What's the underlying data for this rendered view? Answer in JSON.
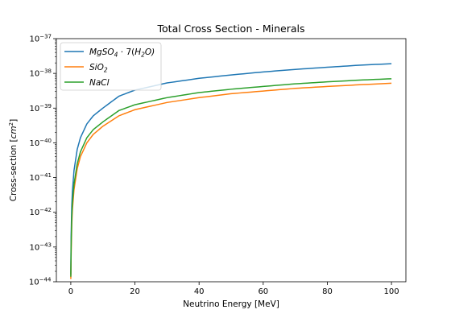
{
  "chart_data": {
    "type": "line",
    "title": "Total Cross Section - Minerals",
    "xlabel": "Neutrino Energy [MeV]",
    "ylabel": "Cross-section [",
    "ylabel_unit_base": "cm",
    "ylabel_unit_exp": "2",
    "ylabel_close": "]",
    "xlim": [
      -4.5,
      104.5
    ],
    "ylim": [
      1e-44,
      1e-37
    ],
    "yscale": "log",
    "grid": false,
    "legend_position": "top-left",
    "x_ticks": [
      0,
      20,
      40,
      60,
      80,
      100
    ],
    "x_tick_labels": [
      "0",
      "20",
      "40",
      "60",
      "80",
      "100"
    ],
    "y_ticks": [
      {
        "exp": -44,
        "base": "10",
        "sup": "−44"
      },
      {
        "exp": -43,
        "base": "10",
        "sup": "−43"
      },
      {
        "exp": -42,
        "base": "10",
        "sup": "−42"
      },
      {
        "exp": -41,
        "base": "10",
        "sup": "−41"
      },
      {
        "exp": -40,
        "base": "10",
        "sup": "−40"
      },
      {
        "exp": -39,
        "base": "10",
        "sup": "−39"
      },
      {
        "exp": -38,
        "base": "10",
        "sup": "−38"
      },
      {
        "exp": -37,
        "base": "10",
        "sup": "−37"
      }
    ],
    "series": [
      {
        "name": "MgSO4·7(H2O)",
        "legend_label": {
          "a": "MgSO",
          "a_sub": "4",
          "b": " · 7(",
          "c": "H",
          "c_sub": "2",
          "d": "O)"
        },
        "color": "#1f77b4",
        "x": [
          0,
          0.1,
          0.3,
          0.5,
          1,
          2,
          3,
          5,
          7,
          10,
          15,
          20,
          30,
          40,
          50,
          60,
          70,
          80,
          90,
          100
        ],
        "y": [
          1.6e-44,
          2e-43,
          1.5e-42,
          4e-42,
          1.6e-41,
          6.5e-41,
          1.4e-40,
          3.5e-40,
          6e-40,
          1e-39,
          2.2e-39,
          3.3e-39,
          5.3e-39,
          7.2e-39,
          9e-39,
          1.1e-38,
          1.3e-38,
          1.5e-38,
          1.72e-38,
          1.9e-38
        ]
      },
      {
        "name": "SiO2",
        "legend_label": {
          "a": "SiO",
          "a_sub": "2"
        },
        "color": "#ff7f0e",
        "x": [
          0,
          0.1,
          0.3,
          0.5,
          1,
          2,
          3,
          5,
          7,
          10,
          15,
          20,
          30,
          40,
          50,
          60,
          70,
          80,
          90,
          100
        ],
        "y": [
          1.2e-44,
          6e-44,
          4.5e-43,
          1.2e-42,
          4.5e-42,
          1.8e-41,
          4e-41,
          1e-40,
          1.75e-40,
          3e-40,
          6e-40,
          9e-40,
          1.45e-39,
          2e-39,
          2.6e-39,
          3.1e-39,
          3.7e-39,
          4.2e-39,
          4.7e-39,
          5.2e-39
        ]
      },
      {
        "name": "NaCl",
        "legend_label": {
          "a": "NaCl"
        },
        "color": "#2ca02c",
        "x": [
          0,
          0.1,
          0.3,
          0.5,
          1,
          2,
          3,
          5,
          7,
          10,
          15,
          20,
          30,
          40,
          50,
          60,
          70,
          80,
          90,
          100
        ],
        "y": [
          1.4e-44,
          1e-43,
          7e-43,
          1.8e-42,
          6.5e-42,
          2.5e-41,
          5.5e-41,
          1.4e-40,
          2.4e-40,
          4e-40,
          8.5e-40,
          1.25e-39,
          2e-39,
          2.8e-39,
          3.5e-39,
          4.2e-39,
          5e-39,
          5.7e-39,
          6.4e-39,
          7e-39
        ]
      }
    ]
  }
}
